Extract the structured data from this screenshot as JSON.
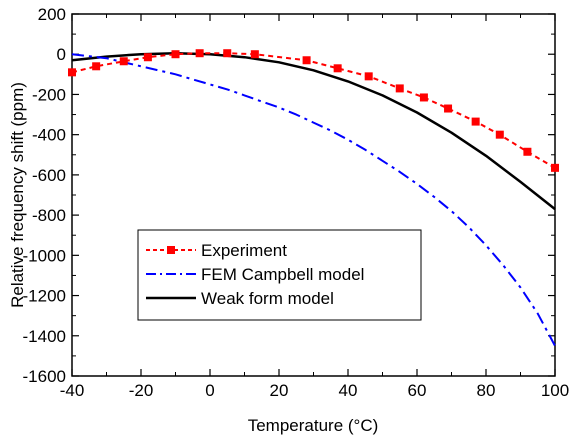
{
  "chart_data": {
    "type": "line",
    "xlabel": "Temperature (°C)",
    "ylabel": "Relative frequency shift (ppm)",
    "xlim": [
      -40,
      100
    ],
    "ylim": [
      -1600,
      200
    ],
    "xticks": [
      -40,
      -20,
      0,
      20,
      40,
      60,
      80,
      100
    ],
    "yticks": [
      -1600,
      -1400,
      -1200,
      -1000,
      -800,
      -600,
      -400,
      -200,
      0,
      200
    ],
    "grid": false,
    "legend_position": "bottom-left",
    "series": [
      {
        "name": "Experiment",
        "style": "dashed-with-square-markers",
        "color": "#ff0000",
        "x": [
          -40,
          -33,
          -25,
          -18,
          -10,
          -3,
          5,
          13,
          28,
          37,
          46,
          55,
          62,
          69,
          77,
          84,
          92,
          100
        ],
        "y": [
          -90,
          -60,
          -35,
          -15,
          0,
          5,
          5,
          0,
          -30,
          -70,
          -110,
          -170,
          -215,
          -270,
          -335,
          -400,
          -485,
          -565
        ]
      },
      {
        "name": "FEM Campbell model",
        "style": "dash-dot",
        "color": "#0000ff",
        "x": [
          -40,
          -35,
          -30,
          -25,
          -20,
          -15,
          -10,
          -5,
          0,
          5,
          10,
          15,
          20,
          25,
          30,
          35,
          40,
          45,
          50,
          55,
          60,
          65,
          70,
          75,
          80,
          85,
          90,
          95,
          100
        ],
        "y": [
          0,
          -10,
          -20,
          -40,
          -60,
          -80,
          -100,
          -125,
          -150,
          -175,
          -205,
          -235,
          -265,
          -300,
          -340,
          -380,
          -425,
          -475,
          -530,
          -585,
          -645,
          -710,
          -780,
          -860,
          -950,
          -1050,
          -1160,
          -1290,
          -1450
        ]
      },
      {
        "name": "Weak form model",
        "style": "solid",
        "color": "#000000",
        "x": [
          -40,
          -30,
          -20,
          -10,
          0,
          10,
          20,
          30,
          40,
          50,
          60,
          70,
          80,
          90,
          100
        ],
        "y": [
          -30,
          -12,
          0,
          5,
          0,
          -15,
          -40,
          -80,
          -135,
          -205,
          -290,
          -390,
          -505,
          -635,
          -770
        ]
      }
    ]
  }
}
